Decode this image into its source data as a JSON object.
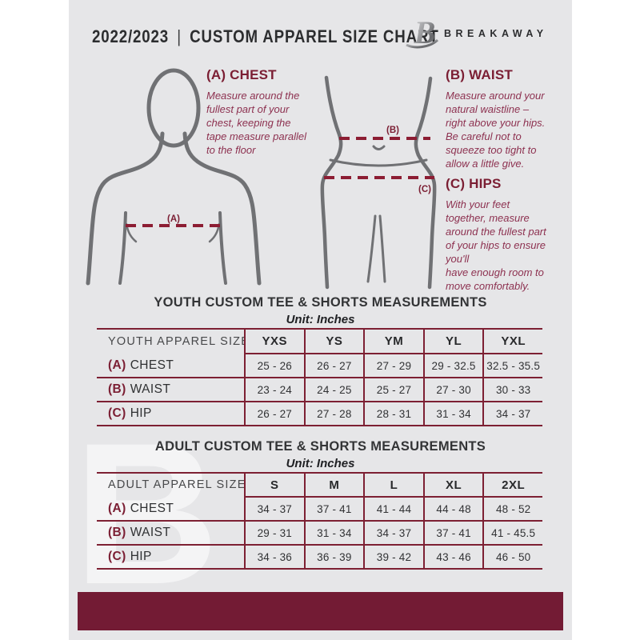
{
  "header": {
    "year_range": "2022/2023",
    "separator": "|",
    "title": "CUSTOM APPAREL SIZE CHART",
    "brand": "BREAKAWAY",
    "logo_letter": "B"
  },
  "watermark": {
    "letter": "B"
  },
  "instructions": [
    {
      "heading": "(A) CHEST",
      "body": "Measure around the\nfullest part of your\nchest, keeping the\ntape measure parallel\nto the floor"
    },
    {
      "heading": "(B) WAIST",
      "body": "Measure around your\nnatural waistline –\nright above your hips.\nBe careful not to\nsqueeze too tight to\nallow a little give."
    },
    {
      "heading": "(C) HIPS",
      "body": "With your feet\ntogether, measure\naround the fullest part\nof your hips to ensure\nyou'll\nhave enough room to\nmove comfortably."
    }
  ],
  "diagram_labels": {
    "chest": "(A)",
    "waist": "(B)",
    "hips": "(C)"
  },
  "youth_table": {
    "title": "YOUTH CUSTOM TEE & SHORTS MEASUREMENTS",
    "unit": "Unit: Inches",
    "label_header": "YOUTH APPAREL SIZE",
    "size_columns": [
      "YXS",
      "YS",
      "YM",
      "YL",
      "YXL"
    ],
    "rows": [
      {
        "prefix": "(A)",
        "label": "CHEST",
        "values": [
          "25 - 26",
          "26 - 27",
          "27 - 29",
          "29 - 32.5",
          "32.5 - 35.5"
        ]
      },
      {
        "prefix": "(B)",
        "label": "WAIST",
        "values": [
          "23 - 24",
          "24 - 25",
          "25 - 27",
          "27 - 30",
          "30 - 33"
        ]
      },
      {
        "prefix": "(C)",
        "label": "HIP",
        "values": [
          "26 - 27",
          "27 - 28",
          "28 - 31",
          "31 - 34",
          "34 - 37"
        ]
      }
    ]
  },
  "adult_table": {
    "title": "ADULT CUSTOM TEE & SHORTS MEASUREMENTS",
    "unit": "Unit: Inches",
    "label_header": "ADULT APPAREL SIZE",
    "size_columns": [
      "S",
      "M",
      "L",
      "XL",
      "2XL"
    ],
    "rows": [
      {
        "prefix": "(A)",
        "label": "CHEST",
        "values": [
          "34 - 37",
          "37 - 41",
          "41 - 44",
          "44 - 48",
          "48 - 52"
        ]
      },
      {
        "prefix": "(B)",
        "label": "WAIST",
        "values": [
          "29 - 31",
          "31 - 34",
          "34 - 37",
          "37 - 41",
          "41 - 45.5"
        ]
      },
      {
        "prefix": "(C)",
        "label": "HIP",
        "values": [
          "34 - 36",
          "36 - 39",
          "39 - 42",
          "43 - 46",
          "46 - 50"
        ]
      }
    ]
  },
  "colors": {
    "maroon_heading": "#7B1E33",
    "maroon_body_text": "#8D3150",
    "maroon_table_line": "#7D2033",
    "maroon_dash_line": "#8C1D33",
    "footer_bar": "#731B34",
    "page_background": "#E6E6E8",
    "text_dark": "#2C2D2F",
    "figure_gray": "#707174"
  }
}
